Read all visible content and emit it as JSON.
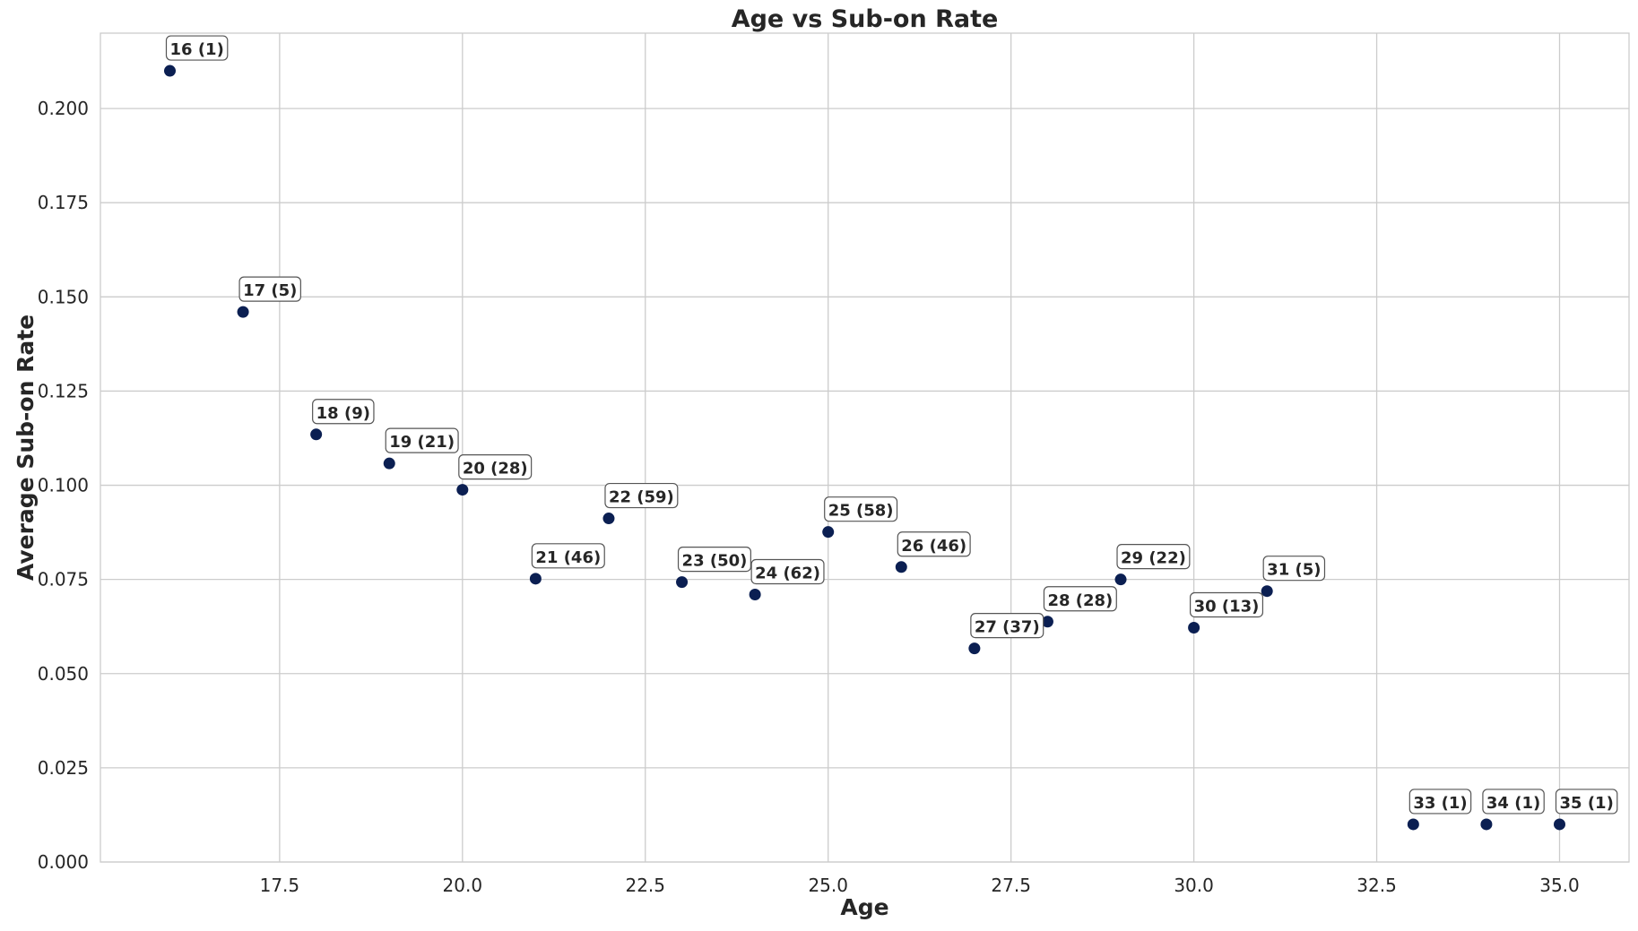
{
  "chart_data": {
    "type": "scatter",
    "title": "Age vs Sub-on Rate",
    "xlabel": "Age",
    "ylabel": "Average Sub-on Rate",
    "xlim": [
      15.05,
      35.95
    ],
    "ylim": [
      0.0,
      0.22
    ],
    "xticks": [
      "17.5",
      "20.0",
      "22.5",
      "25.0",
      "27.5",
      "30.0",
      "32.5",
      "35.0"
    ],
    "yticks": [
      "0.000",
      "0.025",
      "0.050",
      "0.075",
      "0.100",
      "0.125",
      "0.150",
      "0.175",
      "0.200"
    ],
    "grid": true,
    "marker_color": "#0b1f52",
    "points": [
      {
        "x": 16,
        "y": 0.21,
        "label": "16 (1)"
      },
      {
        "x": 17,
        "y": 0.146,
        "label": "17 (5)"
      },
      {
        "x": 18,
        "y": 0.1135,
        "label": "18 (9)"
      },
      {
        "x": 19,
        "y": 0.1058,
        "label": "19 (21)"
      },
      {
        "x": 20,
        "y": 0.0988,
        "label": "20 (28)"
      },
      {
        "x": 21,
        "y": 0.0752,
        "label": "21 (46)"
      },
      {
        "x": 22,
        "y": 0.0912,
        "label": "22 (59)"
      },
      {
        "x": 23,
        "y": 0.0743,
        "label": "23 (50)"
      },
      {
        "x": 24,
        "y": 0.071,
        "label": "24 (62)"
      },
      {
        "x": 25,
        "y": 0.0876,
        "label": "25 (58)"
      },
      {
        "x": 26,
        "y": 0.0783,
        "label": "26 (46)"
      },
      {
        "x": 27,
        "y": 0.0567,
        "label": "27 (37)"
      },
      {
        "x": 28,
        "y": 0.0638,
        "label": "28 (28)"
      },
      {
        "x": 29,
        "y": 0.075,
        "label": "29 (22)"
      },
      {
        "x": 30,
        "y": 0.0622,
        "label": "30 (13)"
      },
      {
        "x": 31,
        "y": 0.0719,
        "label": "31 (5)"
      },
      {
        "x": 33,
        "y": 0.01,
        "label": "33 (1)"
      },
      {
        "x": 34,
        "y": 0.01,
        "label": "34 (1)"
      },
      {
        "x": 35,
        "y": 0.01,
        "label": "35 (1)"
      }
    ]
  }
}
